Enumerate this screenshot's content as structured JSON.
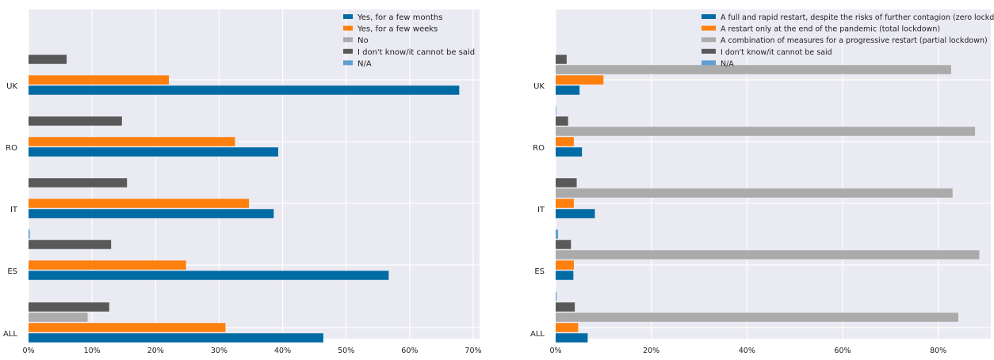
{
  "chart_data": [
    {
      "type": "bar",
      "orientation": "horizontal",
      "categories": [
        "ALL",
        "ES",
        "IT",
        "RO",
        "UK"
      ],
      "xlim": [
        0,
        71
      ],
      "x_ticks": [
        0,
        10,
        20,
        30,
        40,
        50,
        60,
        70
      ],
      "x_tick_labels": [
        "0%",
        "10%",
        "20%",
        "30%",
        "40%",
        "50%",
        "60%",
        "70%"
      ],
      "grid": true,
      "legend_position": "top-right",
      "series": [
        {
          "name": "Yes, for a few months",
          "color": "#006ba4",
          "values": [
            46.4,
            56.7,
            38.6,
            39.3,
            67.8
          ]
        },
        {
          "name": "Yes, for a few weeks",
          "color": "#ff800e",
          "values": [
            31.0,
            24.8,
            34.7,
            32.5,
            22.1
          ]
        },
        {
          "name": "No",
          "color": "#ababab",
          "values": [
            9.3,
            0,
            0,
            0,
            0
          ]
        },
        {
          "name": "I don't know/it cannot be said",
          "color": "#595959",
          "values": [
            12.7,
            13.0,
            15.5,
            14.7,
            6.0
          ]
        },
        {
          "name": "N/A",
          "color": "#5f9ed1",
          "values": [
            0,
            0.2,
            0,
            0,
            0
          ]
        }
      ]
    },
    {
      "type": "bar",
      "orientation": "horizontal",
      "categories": [
        "ALL",
        "ES",
        "IT",
        "RO",
        "UK"
      ],
      "xlim": [
        0,
        91
      ],
      "x_ticks": [
        0,
        20,
        40,
        60,
        80
      ],
      "x_tick_labels": [
        "0%",
        "20%",
        "40%",
        "60%",
        "80%"
      ],
      "grid": true,
      "legend_position": "top-right",
      "series": [
        {
          "name": "A full and rapid restart, despite the risks of further contagion (zero lockdown)",
          "color": "#006ba4",
          "values": [
            6.7,
            3.7,
            8.2,
            5.5,
            5.0
          ]
        },
        {
          "name": "A restart only at the end of the pandemic (total lockdown)",
          "color": "#ff800e",
          "values": [
            4.7,
            3.8,
            3.8,
            3.8,
            10.0
          ]
        },
        {
          "name": "A combination of measures for a progressive restart (partial lockdown)",
          "color": "#ababab",
          "values": [
            84.2,
            88.6,
            83.0,
            87.7,
            82.7
          ]
        },
        {
          "name": "I don't know/it cannot be said",
          "color": "#595959",
          "values": [
            4.0,
            3.2,
            4.4,
            2.6,
            2.3
          ]
        },
        {
          "name": "N/A",
          "color": "#5f9ed1",
          "values": [
            0.2,
            0.5,
            0,
            0.1,
            0
          ]
        }
      ]
    }
  ]
}
